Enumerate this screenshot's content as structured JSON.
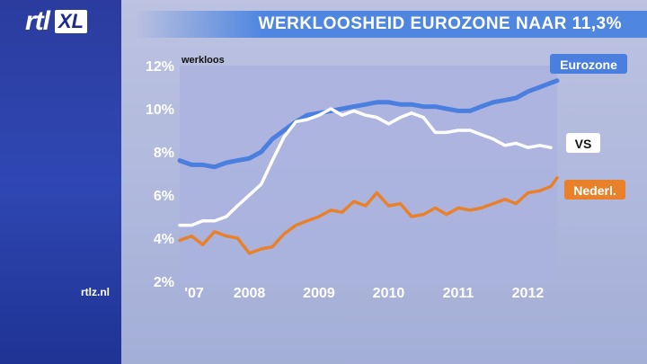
{
  "header": {
    "headline": "WERKLOOSHEID EUROZONE NAAR 11,3%"
  },
  "logo": {
    "rtl": "rtl",
    "xl": "XL"
  },
  "footer": {
    "source": "rtlz.nl"
  },
  "colors": {
    "eurozone": "#4a7fe0",
    "vs": "#ffffff",
    "nederland": "#e8812a",
    "plot_bg": "#a9b2df"
  },
  "chart_data": {
    "type": "line",
    "title": "WERKLOOSHEID EUROZONE NAAR 11,3%",
    "ylabel": "werkloos",
    "xlabel": "",
    "ylim": [
      2,
      12
    ],
    "xlim": [
      2007.0,
      2012.42
    ],
    "yticks": [
      "2%",
      "4%",
      "6%",
      "8%",
      "10%",
      "12%"
    ],
    "ytick_values": [
      2,
      4,
      6,
      8,
      10,
      12
    ],
    "xticks": [
      "'07",
      "2008",
      "2009",
      "2010",
      "2011",
      "2012"
    ],
    "xtick_values": [
      2007.0,
      2008.0,
      2009.0,
      2010.0,
      2011.0,
      2012.0
    ],
    "grid": false,
    "legend": "labels at line ends (right)",
    "series": [
      {
        "name": "Eurozone",
        "color": "#4a7fe0",
        "x": [
          2007.0,
          2007.17,
          2007.33,
          2007.5,
          2007.67,
          2007.83,
          2008.0,
          2008.17,
          2008.33,
          2008.5,
          2008.67,
          2008.83,
          2009.0,
          2009.17,
          2009.33,
          2009.5,
          2009.67,
          2009.83,
          2010.0,
          2010.17,
          2010.33,
          2010.5,
          2010.67,
          2010.83,
          2011.0,
          2011.17,
          2011.33,
          2011.5,
          2011.67,
          2011.83,
          2012.0,
          2012.17,
          2012.33,
          2012.42
        ],
        "values": [
          7.6,
          7.4,
          7.4,
          7.3,
          7.5,
          7.6,
          7.7,
          8.0,
          8.6,
          9.0,
          9.4,
          9.7,
          9.8,
          9.9,
          10.0,
          10.1,
          10.2,
          10.3,
          10.3,
          10.2,
          10.2,
          10.1,
          10.1,
          10.0,
          9.9,
          9.9,
          10.1,
          10.3,
          10.4,
          10.5,
          10.8,
          11.0,
          11.2,
          11.3
        ]
      },
      {
        "name": "VS",
        "color": "#ffffff",
        "x": [
          2007.0,
          2007.17,
          2007.33,
          2007.5,
          2007.67,
          2007.83,
          2008.0,
          2008.17,
          2008.33,
          2008.5,
          2008.67,
          2008.83,
          2009.0,
          2009.17,
          2009.33,
          2009.5,
          2009.67,
          2009.83,
          2010.0,
          2010.17,
          2010.33,
          2010.5,
          2010.67,
          2010.83,
          2011.0,
          2011.17,
          2011.33,
          2011.5,
          2011.67,
          2011.83,
          2012.0,
          2012.17,
          2012.33
        ],
        "values": [
          4.6,
          4.6,
          4.8,
          4.8,
          5.0,
          5.5,
          6.0,
          6.5,
          7.6,
          8.7,
          9.4,
          9.5,
          9.7,
          10.0,
          9.7,
          9.9,
          9.7,
          9.6,
          9.3,
          9.6,
          9.8,
          9.6,
          8.9,
          8.9,
          9.0,
          9.0,
          8.8,
          8.6,
          8.3,
          8.4,
          8.2,
          8.3,
          8.2
        ]
      },
      {
        "name": "Nederl.",
        "color": "#e8812a",
        "x": [
          2007.0,
          2007.17,
          2007.33,
          2007.5,
          2007.67,
          2007.83,
          2008.0,
          2008.17,
          2008.33,
          2008.5,
          2008.67,
          2008.83,
          2009.0,
          2009.17,
          2009.33,
          2009.5,
          2009.67,
          2009.83,
          2010.0,
          2010.17,
          2010.33,
          2010.5,
          2010.67,
          2010.83,
          2011.0,
          2011.17,
          2011.33,
          2011.5,
          2011.67,
          2011.83,
          2012.0,
          2012.17,
          2012.33,
          2012.42
        ],
        "values": [
          3.9,
          4.1,
          3.7,
          4.3,
          4.1,
          4.0,
          3.3,
          3.5,
          3.6,
          4.2,
          4.6,
          4.8,
          5.0,
          5.3,
          5.2,
          5.7,
          5.5,
          6.1,
          5.5,
          5.6,
          5.0,
          5.1,
          5.4,
          5.1,
          5.4,
          5.3,
          5.4,
          5.6,
          5.8,
          5.6,
          6.1,
          6.2,
          6.4,
          6.8
        ]
      }
    ]
  }
}
